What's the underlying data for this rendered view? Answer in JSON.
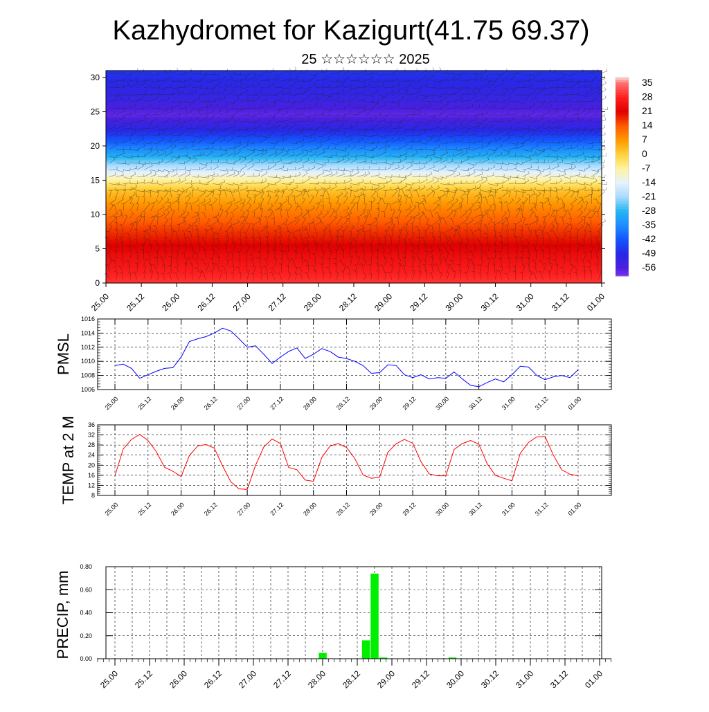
{
  "title": "Kazhydromet for Kazigurt(41.75 69.37)",
  "subtitle": "25 ☆☆☆☆☆☆ 2025",
  "x_ticks": [
    "25.00",
    "25.12",
    "26.00",
    "26.12",
    "27.00",
    "27.12",
    "28.00",
    "28.12",
    "29.00",
    "29.12",
    "30.00",
    "30.12",
    "31.00",
    "31.12",
    "01.00"
  ],
  "colors": {
    "pmsl": "#0000ff",
    "temp": "#ff0000",
    "precip": "#00ee00"
  },
  "chart_data": [
    {
      "type": "heatmap",
      "id": "cross_section",
      "title": "",
      "ylabel": "",
      "ylim": [
        0,
        31
      ],
      "y_ticks": [
        0,
        5,
        10,
        15,
        20,
        25,
        30
      ],
      "x_ticks": [
        "25.00",
        "25.12",
        "26.00",
        "26.12",
        "27.00",
        "27.12",
        "28.00",
        "28.12",
        "29.00",
        "29.12",
        "30.00",
        "30.12",
        "31.00",
        "31.12",
        "01.00"
      ],
      "profile": [
        {
          "h": 0,
          "t": 30
        },
        {
          "h": 4,
          "t": 24
        },
        {
          "h": 8,
          "t": 16
        },
        {
          "h": 11,
          "t": 9
        },
        {
          "h": 13.5,
          "t": 2
        },
        {
          "h": 15.5,
          "t": -10
        },
        {
          "h": 17,
          "t": -20
        },
        {
          "h": 19.5,
          "t": -35
        },
        {
          "h": 22,
          "t": -48
        },
        {
          "h": 24.5,
          "t": -58
        },
        {
          "h": 27,
          "t": -52
        },
        {
          "h": 31,
          "t": -47
        }
      ],
      "colorbar": {
        "labels": [
          "35",
          "28",
          "21",
          "14",
          "7",
          "0",
          "-7",
          "-14",
          "-21",
          "-28",
          "-35",
          "-42",
          "-49",
          "-56"
        ],
        "stops": [
          {
            "v": 38,
            "c": "#ffd6d6"
          },
          {
            "v": 35,
            "c": "#ff6f6f"
          },
          {
            "v": 28,
            "c": "#ff1e1e"
          },
          {
            "v": 21,
            "c": "#e00000"
          },
          {
            "v": 14,
            "c": "#ff5a00"
          },
          {
            "v": 7,
            "c": "#ff9a00"
          },
          {
            "v": 0,
            "c": "#ffd23a"
          },
          {
            "v": -7,
            "c": "#fff3a0"
          },
          {
            "v": -14,
            "c": "#e6f2ff"
          },
          {
            "v": -21,
            "c": "#a6dcff"
          },
          {
            "v": -28,
            "c": "#25b4f2"
          },
          {
            "v": -35,
            "c": "#1e8cff"
          },
          {
            "v": -42,
            "c": "#1455ff"
          },
          {
            "v": -49,
            "c": "#2828e6"
          },
          {
            "v": -56,
            "c": "#4a20e0"
          },
          {
            "v": -60,
            "c": "#7a30f0"
          }
        ]
      }
    },
    {
      "type": "line",
      "id": "pmsl",
      "ylabel": "PMSL",
      "ylim": [
        1006,
        1016
      ],
      "y_ticks": [
        "1006",
        "1008",
        "1010",
        "1012",
        "1014",
        "1016"
      ],
      "series": [
        {
          "name": "",
          "values": [
            1009.4,
            1009.6,
            1009.0,
            1007.6,
            1008.1,
            1008.6,
            1009.0,
            1009.1,
            1010.6,
            1012.8,
            1013.2,
            1013.5,
            1014.0,
            1014.7,
            1014.3,
            1013.2,
            1012.0,
            1012.2,
            1011.0,
            1009.7,
            1010.6,
            1011.4,
            1011.9,
            1010.4,
            1011.0,
            1011.8,
            1011.4,
            1010.6,
            1010.4,
            1010.0,
            1009.4,
            1008.3,
            1008.4,
            1009.5,
            1009.4,
            1008.1,
            1007.7,
            1008.1,
            1007.5,
            1007.7,
            1007.6,
            1008.5,
            1007.5,
            1006.6,
            1006.4,
            1007.0,
            1007.5,
            1007.1,
            1008.1,
            1009.3,
            1009.2,
            1008.0,
            1007.4,
            1007.8,
            1008.0,
            1007.7,
            1008.8
          ]
        }
      ]
    },
    {
      "type": "line",
      "id": "temp",
      "ylabel": "TEMP at 2 M",
      "ylim": [
        8,
        36
      ],
      "y_ticks": [
        "8",
        "12",
        "16",
        "20",
        "24",
        "28",
        "32",
        "36"
      ],
      "series": [
        {
          "name": "",
          "values": [
            15.8,
            26.4,
            30.2,
            32.2,
            29.8,
            25.4,
            19.2,
            17.6,
            15.5,
            23.8,
            27.6,
            28.2,
            26.8,
            19.8,
            13.4,
            10.6,
            10.4,
            20.0,
            27.2,
            30.4,
            28.6,
            19.1,
            18.2,
            14.1,
            13.6,
            23.0,
            27.6,
            28.6,
            27.0,
            22.7,
            16.1,
            14.8,
            15.2,
            25.1,
            28.5,
            30.2,
            28.7,
            21.4,
            16.5,
            15.8,
            15.8,
            26.2,
            28.6,
            29.8,
            28.3,
            20.6,
            16.0,
            14.8,
            13.8,
            24.7,
            29.0,
            31.2,
            31.4,
            24.0,
            18.2,
            16.4,
            15.8
          ]
        }
      ]
    },
    {
      "type": "bar",
      "id": "precip",
      "ylabel": "PRECIP, mm",
      "ylim": [
        0,
        0.8
      ],
      "y_ticks": [
        "0.00",
        "0.20",
        "0.40",
        "0.60",
        "0.80"
      ],
      "values": [
        0,
        0,
        0,
        0,
        0,
        0,
        0,
        0,
        0,
        0,
        0,
        0,
        0,
        0,
        0,
        0,
        0,
        0,
        0,
        0,
        0,
        0,
        0,
        0,
        0.05,
        0,
        0,
        0,
        0,
        0.16,
        0.74,
        0.01,
        0,
        0,
        0,
        0,
        0,
        0,
        0,
        0.01,
        0,
        0,
        0,
        0,
        0,
        0,
        0,
        0,
        0,
        0,
        0,
        0,
        0,
        0,
        0,
        0,
        0
      ]
    }
  ]
}
